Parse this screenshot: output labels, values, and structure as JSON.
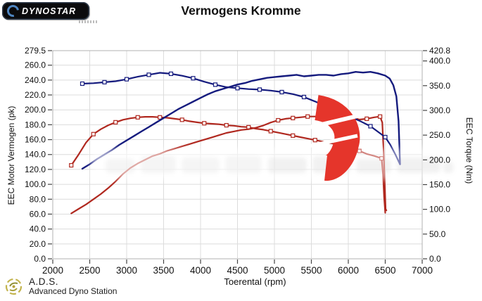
{
  "header": {
    "logo_text": "DYNOSTAR",
    "title": "Vermogens Kromme"
  },
  "footer": {
    "abbr": "A.D.S.",
    "name": "Advanced Dyno Station"
  },
  "chart_data": {
    "type": "line",
    "title": "Vermogens Kromme",
    "xlabel": "Toerental (rpm)",
    "ylabel_left": "EEC Motor Vermogen (pk)",
    "ylabel_right": "EEC Torque (Nm)",
    "x_range": [
      2000,
      7000
    ],
    "x_ticks": [
      2000,
      2500,
      3000,
      3500,
      4000,
      4500,
      5000,
      5500,
      6000,
      6500,
      7000
    ],
    "y_left": {
      "min": 0,
      "max": 279.5,
      "ticks": [
        0,
        20,
        40,
        60,
        80,
        100,
        120,
        140,
        160,
        180,
        200,
        220,
        240,
        260,
        279.5
      ]
    },
    "y_right": {
      "min": 0,
      "max": 420.8,
      "ticks": [
        0,
        50,
        100,
        150,
        200,
        250,
        300,
        350,
        400,
        420.8
      ]
    },
    "grid": true,
    "legend": "none",
    "colors": {
      "blue": "#151b7e",
      "red": "#b0281f",
      "censor": "#e5352b",
      "grid": "#dcdcdc",
      "axis": "#b0b0b0",
      "tick": "#444444"
    },
    "series": [
      {
        "id": "red-torque",
        "axis": "right",
        "color": "#b0281f",
        "width": 2.2,
        "marker": "square",
        "marker_every": 3,
        "marker_to": 6450,
        "points": [
          [
            2250,
            189
          ],
          [
            2350,
            211
          ],
          [
            2450,
            235
          ],
          [
            2550,
            252
          ],
          [
            2650,
            262
          ],
          [
            2750,
            270
          ],
          [
            2850,
            276
          ],
          [
            2950,
            281
          ],
          [
            3050,
            284
          ],
          [
            3150,
            286
          ],
          [
            3250,
            287
          ],
          [
            3350,
            287
          ],
          [
            3450,
            286
          ],
          [
            3550,
            285
          ],
          [
            3650,
            283
          ],
          [
            3750,
            281
          ],
          [
            3850,
            278
          ],
          [
            3950,
            276
          ],
          [
            4050,
            274
          ],
          [
            4150,
            273
          ],
          [
            4250,
            272
          ],
          [
            4350,
            270
          ],
          [
            4450,
            269
          ],
          [
            4550,
            267
          ],
          [
            4650,
            266
          ],
          [
            4750,
            263
          ],
          [
            4850,
            261
          ],
          [
            4950,
            258
          ],
          [
            5050,
            255
          ],
          [
            5150,
            252
          ],
          [
            5250,
            249
          ],
          [
            5350,
            246
          ],
          [
            5450,
            243
          ],
          [
            5550,
            240
          ],
          [
            5650,
            237
          ],
          [
            5750,
            234
          ],
          [
            5850,
            231
          ],
          [
            5950,
            228
          ],
          [
            6050,
            224
          ],
          [
            6150,
            218
          ],
          [
            6250,
            212
          ],
          [
            6350,
            208
          ],
          [
            6450,
            203
          ],
          [
            6470,
            170
          ],
          [
            6485,
            125
          ],
          [
            6500,
            93
          ]
        ]
      },
      {
        "id": "red-power",
        "axis": "left",
        "color": "#b0281f",
        "width": 2.2,
        "marker": "square",
        "marker_every": 2,
        "marker_from": 5050,
        "marker_to": 6430,
        "points": [
          [
            2250,
            61
          ],
          [
            2350,
            67
          ],
          [
            2450,
            73
          ],
          [
            2550,
            80
          ],
          [
            2650,
            87
          ],
          [
            2750,
            95
          ],
          [
            2850,
            104
          ],
          [
            2950,
            114
          ],
          [
            3050,
            122
          ],
          [
            3150,
            128
          ],
          [
            3250,
            133
          ],
          [
            3350,
            138
          ],
          [
            3450,
            141
          ],
          [
            3550,
            145
          ],
          [
            3650,
            148
          ],
          [
            3750,
            151
          ],
          [
            3850,
            154
          ],
          [
            3950,
            157
          ],
          [
            4050,
            160
          ],
          [
            4150,
            163
          ],
          [
            4250,
            166
          ],
          [
            4350,
            169
          ],
          [
            4450,
            171
          ],
          [
            4550,
            173
          ],
          [
            4650,
            174
          ],
          [
            4750,
            176
          ],
          [
            4850,
            179
          ],
          [
            4950,
            183
          ],
          [
            5050,
            186
          ],
          [
            5150,
            188
          ],
          [
            5250,
            189
          ],
          [
            5350,
            190
          ],
          [
            5450,
            191
          ],
          [
            5550,
            191
          ],
          [
            5650,
            192
          ],
          [
            5750,
            193
          ],
          [
            5850,
            193
          ],
          [
            5950,
            193
          ],
          [
            6050,
            190
          ],
          [
            6150,
            187
          ],
          [
            6250,
            188
          ],
          [
            6350,
            190
          ],
          [
            6430,
            191
          ],
          [
            6460,
            183
          ],
          [
            6480,
            140
          ],
          [
            6495,
            95
          ],
          [
            6505,
            67
          ],
          [
            6515,
            65
          ]
        ]
      },
      {
        "id": "blue-torque",
        "axis": "right",
        "color": "#151b7e",
        "width": 2.2,
        "marker": "square",
        "marker_every": 2,
        "marker_to": 6500,
        "points": [
          [
            2400,
            354
          ],
          [
            2550,
            355
          ],
          [
            2700,
            357
          ],
          [
            2850,
            359
          ],
          [
            3000,
            363
          ],
          [
            3150,
            368
          ],
          [
            3300,
            372
          ],
          [
            3450,
            376
          ],
          [
            3600,
            374
          ],
          [
            3750,
            370
          ],
          [
            3900,
            365
          ],
          [
            4050,
            358
          ],
          [
            4200,
            352
          ],
          [
            4350,
            347
          ],
          [
            4500,
            345
          ],
          [
            4650,
            343
          ],
          [
            4800,
            342
          ],
          [
            4950,
            340
          ],
          [
            5100,
            337
          ],
          [
            5250,
            333
          ],
          [
            5400,
            327
          ],
          [
            5550,
            318
          ],
          [
            5700,
            308
          ],
          [
            5850,
            298
          ],
          [
            6000,
            289
          ],
          [
            6150,
            279
          ],
          [
            6300,
            268
          ],
          [
            6400,
            257
          ],
          [
            6500,
            246
          ],
          [
            6570,
            230
          ],
          [
            6640,
            210
          ],
          [
            6700,
            191
          ]
        ]
      },
      {
        "id": "blue-power",
        "axis": "left",
        "color": "#151b7e",
        "width": 2.4,
        "marker": "none",
        "points": [
          [
            2400,
            121
          ],
          [
            2500,
            127
          ],
          [
            2600,
            134
          ],
          [
            2700,
            140
          ],
          [
            2800,
            146
          ],
          [
            2900,
            153
          ],
          [
            3000,
            159
          ],
          [
            3100,
            165
          ],
          [
            3200,
            171
          ],
          [
            3300,
            177
          ],
          [
            3400,
            183
          ],
          [
            3500,
            189
          ],
          [
            3600,
            195
          ],
          [
            3700,
            201
          ],
          [
            3800,
            206
          ],
          [
            3900,
            211
          ],
          [
            4000,
            216
          ],
          [
            4100,
            221
          ],
          [
            4200,
            225
          ],
          [
            4300,
            228
          ],
          [
            4400,
            231
          ],
          [
            4500,
            234
          ],
          [
            4600,
            236
          ],
          [
            4700,
            239
          ],
          [
            4800,
            241
          ],
          [
            4900,
            243
          ],
          [
            5000,
            244
          ],
          [
            5100,
            245
          ],
          [
            5200,
            246
          ],
          [
            5300,
            247
          ],
          [
            5400,
            245
          ],
          [
            5500,
            246
          ],
          [
            5600,
            247
          ],
          [
            5700,
            247
          ],
          [
            5800,
            246
          ],
          [
            5900,
            248
          ],
          [
            6000,
            249
          ],
          [
            6100,
            251
          ],
          [
            6200,
            250
          ],
          [
            6300,
            251
          ],
          [
            6400,
            249
          ],
          [
            6500,
            246
          ],
          [
            6560,
            242
          ],
          [
            6610,
            233
          ],
          [
            6650,
            218
          ],
          [
            6680,
            185
          ],
          [
            6700,
            127
          ]
        ]
      }
    ]
  }
}
